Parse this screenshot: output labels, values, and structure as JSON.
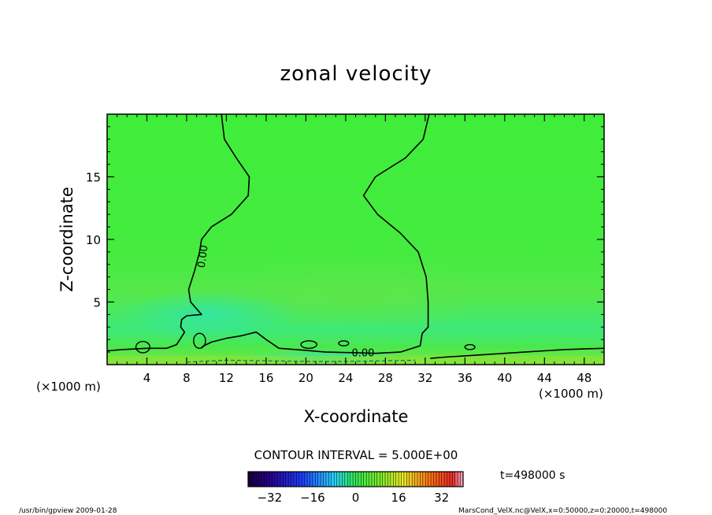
{
  "chart_data": {
    "type": "heatmap",
    "title": "zonal velocity",
    "xlabel": "X-coordinate",
    "ylabel": "Z-coordinate",
    "x_unit_label": "(×1000 m)",
    "x_unit_label_bottom": "(×1000 m)",
    "xlim": [
      0,
      50
    ],
    "ylim": [
      0,
      20
    ],
    "x_ticks": [
      4,
      8,
      12,
      16,
      20,
      24,
      28,
      32,
      36,
      40,
      44,
      48
    ],
    "y_ticks": [
      5,
      10,
      15
    ],
    "contour_interval_text": "CONTOUR INTERVAL = 5.000E+00",
    "contour_labels": [
      "0.00",
      "0.00"
    ],
    "time_text": "t=498000 s",
    "colorbar": {
      "min": -40,
      "max": 40,
      "ticks": [
        -32,
        -16,
        0,
        16,
        32
      ],
      "tick_labels": [
        "−32",
        "−16",
        "0",
        "16",
        "32"
      ]
    },
    "grid": false,
    "zero_contours": [
      {
        "name": "left",
        "points": [
          [
            11.5,
            20
          ],
          [
            11.8,
            18
          ],
          [
            13,
            16.5
          ],
          [
            14.3,
            15
          ],
          [
            14.2,
            13.5
          ],
          [
            12.5,
            12
          ],
          [
            10.5,
            11
          ],
          [
            9.5,
            10
          ],
          [
            9.3,
            9
          ],
          [
            8.8,
            7.5
          ],
          [
            8.2,
            6
          ],
          [
            8.4,
            5
          ],
          [
            9.5,
            4
          ],
          [
            8,
            3.9
          ],
          [
            7.5,
            3.6
          ],
          [
            7.4,
            3
          ],
          [
            7.8,
            2.6
          ],
          [
            7,
            1.6
          ],
          [
            6,
            1.3
          ],
          [
            4,
            1.3
          ],
          [
            1.5,
            1.2
          ],
          [
            0,
            1.1
          ]
        ]
      },
      {
        "name": "right",
        "points": [
          [
            32.4,
            20
          ],
          [
            31.8,
            18
          ],
          [
            30,
            16.5
          ],
          [
            27,
            15
          ],
          [
            25.8,
            13.5
          ],
          [
            27.2,
            12
          ],
          [
            29.5,
            10.5
          ],
          [
            31.3,
            9
          ],
          [
            32.1,
            7
          ],
          [
            32.3,
            5
          ],
          [
            32.3,
            3
          ],
          [
            31.7,
            2.5
          ],
          [
            31.5,
            1.5
          ],
          [
            29.5,
            1
          ],
          [
            27,
            0.9
          ],
          [
            25,
            0.95
          ],
          [
            22,
            1
          ],
          [
            19,
            1.2
          ],
          [
            17.3,
            1.3
          ],
          [
            16,
            2
          ],
          [
            15,
            2.6
          ],
          [
            13.5,
            2.3
          ],
          [
            12,
            2.1
          ],
          [
            10.5,
            1.8
          ],
          [
            9.5,
            1.4
          ]
        ]
      },
      {
        "name": "bottom-right",
        "points": [
          [
            32.5,
            0.5
          ],
          [
            34,
            0.6
          ],
          [
            36,
            0.7
          ],
          [
            38,
            0.8
          ],
          [
            40,
            0.9
          ],
          [
            42,
            1
          ],
          [
            44,
            1.1
          ],
          [
            46,
            1.2
          ],
          [
            48,
            1.25
          ],
          [
            50,
            1.3
          ]
        ]
      }
    ]
  },
  "footer": {
    "left_text": "/usr/bin/gpview  2009-01-28",
    "right_text": "MarsCond_VelX.nc@VelX,x=0:50000,z=0:20000,t=498000"
  }
}
